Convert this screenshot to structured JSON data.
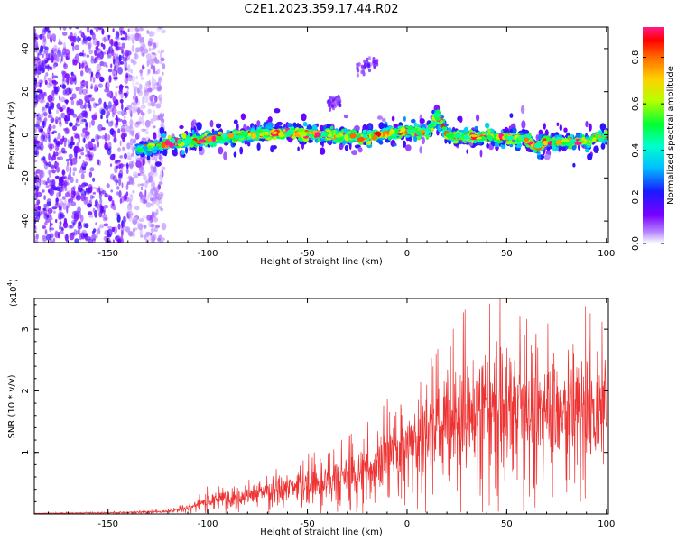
{
  "title": "C2E1.2023.359.17.44.R02",
  "colors": {
    "snr_line": "#ee3333",
    "axis": "#000000",
    "background": "#ffffff"
  },
  "chart_data": [
    {
      "type": "heatmap",
      "name": "spectrogram",
      "xlabel": "Height of straight line (km)",
      "ylabel": "Frequency (Hz)",
      "xlim": [
        -187,
        101
      ],
      "ylim": [
        -50,
        50
      ],
      "xticks": [
        -150,
        -100,
        -50,
        0,
        50,
        100
      ],
      "yticks": [
        -40,
        -20,
        0,
        20,
        40
      ],
      "colorbar": {
        "label": "Normalized spectral amplitude",
        "range": [
          0.0,
          0.93
        ],
        "ticks": [
          0.0,
          0.2,
          0.4,
          0.6,
          0.8
        ]
      },
      "ridge": {
        "x": [
          -135,
          -120,
          -100,
          -80,
          -60,
          -40,
          -20,
          0,
          10,
          13,
          15,
          18,
          20,
          30,
          40,
          50,
          60,
          65,
          70,
          80,
          90,
          100
        ],
        "freq": [
          -7,
          -4,
          -2,
          0,
          1,
          0,
          -1,
          2,
          1,
          5,
          9,
          4,
          0,
          -1,
          -1,
          -1,
          -2,
          -6,
          -3,
          -3,
          -3,
          0
        ]
      },
      "noise_region_xmax": -122,
      "extra_features": [
        {
          "x_range": [
            -40,
            -33
          ],
          "freq": 14,
          "note": "weak branch"
        },
        {
          "x_range": [
            -25,
            -15
          ],
          "freq": 30,
          "note": "faint streak"
        }
      ]
    },
    {
      "type": "line",
      "name": "snr",
      "xlabel": "Height of straight line (km)",
      "ylabel": "SNR (10 * v/v)",
      "scale_label": "(x10",
      "scale_exponent": "4",
      "scale_close": ")",
      "xlim": [
        -187,
        101
      ],
      "ylim": [
        0,
        3.5
      ],
      "xticks": [
        -150,
        -100,
        -50,
        0,
        50,
        100
      ],
      "yticks": [
        1,
        2,
        3
      ],
      "envelope_x": [
        -187,
        -150,
        -120,
        -110,
        -100,
        -80,
        -60,
        -40,
        -20,
        -10,
        0,
        10,
        20,
        30,
        40,
        50,
        60,
        70,
        80,
        90,
        100
      ],
      "envelope_y": [
        0.01,
        0.02,
        0.04,
        0.1,
        0.22,
        0.32,
        0.42,
        0.52,
        0.72,
        0.95,
        1.15,
        1.3,
        1.45,
        1.6,
        1.7,
        1.75,
        1.75,
        1.72,
        1.7,
        1.7,
        1.65
      ]
    }
  ]
}
